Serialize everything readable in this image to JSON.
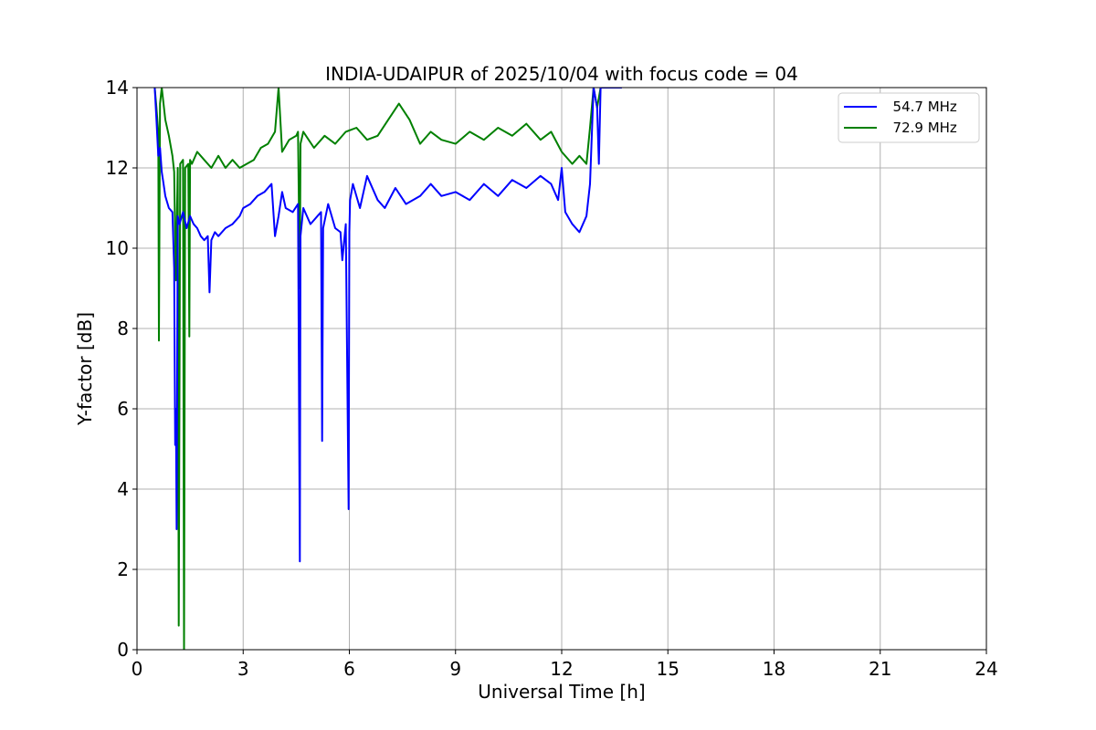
{
  "chart_data": {
    "type": "line",
    "title": "INDIA-UDAIPUR of 2025/10/04 with focus code = 04",
    "xlabel": "Universal Time [h]",
    "ylabel": "Y-factor [dB]",
    "xlim": [
      0,
      24
    ],
    "ylim": [
      0,
      14
    ],
    "xticks": [
      0,
      3,
      6,
      9,
      12,
      15,
      18,
      21,
      24
    ],
    "yticks": [
      0,
      2,
      4,
      6,
      8,
      10,
      12,
      14
    ],
    "xtick_labels": [
      "0",
      "3",
      "6",
      "9",
      "12",
      "15",
      "18",
      "21",
      "24"
    ],
    "ytick_labels": [
      "0",
      "2",
      "4",
      "6",
      "8",
      "10",
      "12",
      "14"
    ],
    "grid": true,
    "legend_position": "top-right",
    "series": [
      {
        "name": "  54.7 MHz",
        "color": "#0000ff",
        "x": [
          0.5,
          0.55,
          0.6,
          0.65,
          0.7,
          0.75,
          0.8,
          0.9,
          1.0,
          1.05,
          1.08,
          1.1,
          1.12,
          1.15,
          1.2,
          1.3,
          1.4,
          1.5,
          1.6,
          1.7,
          1.8,
          1.9,
          2.0,
          2.05,
          2.1,
          2.2,
          2.3,
          2.5,
          2.7,
          2.9,
          3.0,
          3.2,
          3.4,
          3.6,
          3.8,
          3.9,
          4.0,
          4.1,
          4.2,
          4.4,
          4.55,
          4.6,
          4.62,
          4.7,
          4.9,
          5.1,
          5.2,
          5.23,
          5.26,
          5.4,
          5.6,
          5.75,
          5.8,
          5.9,
          5.98,
          6.0,
          6.02,
          6.1,
          6.3,
          6.5,
          6.8,
          7.0,
          7.3,
          7.6,
          8.0,
          8.3,
          8.6,
          9.0,
          9.4,
          9.8,
          10.2,
          10.6,
          11.0,
          11.4,
          11.7,
          11.9,
          12.0,
          12.1,
          12.3,
          12.5,
          12.7,
          12.8,
          12.9,
          13.0,
          13.05,
          13.1,
          13.2,
          13.5,
          13.7
        ],
        "y": [
          14.0,
          13.2,
          12.3,
          12.5,
          11.9,
          11.6,
          11.3,
          11.0,
          10.9,
          9.5,
          5.1,
          6.0,
          3.0,
          10.8,
          10.6,
          10.9,
          10.5,
          10.8,
          10.6,
          10.5,
          10.3,
          10.2,
          10.3,
          8.9,
          10.2,
          10.4,
          10.3,
          10.5,
          10.6,
          10.8,
          11.0,
          11.1,
          11.3,
          11.4,
          11.6,
          10.3,
          10.8,
          11.4,
          11.0,
          10.9,
          11.1,
          2.2,
          10.3,
          11.0,
          10.6,
          10.8,
          10.9,
          5.2,
          10.5,
          11.1,
          10.5,
          10.4,
          9.7,
          10.6,
          3.5,
          10.4,
          11.2,
          11.6,
          11.0,
          11.8,
          11.2,
          11.0,
          11.5,
          11.1,
          11.3,
          11.6,
          11.3,
          11.4,
          11.2,
          11.6,
          11.3,
          11.7,
          11.5,
          11.8,
          11.6,
          11.2,
          12.0,
          10.9,
          10.6,
          10.4,
          10.8,
          11.6,
          14.0,
          13.5,
          12.1,
          14.0,
          14.0,
          14.0,
          14.0
        ]
      },
      {
        "name": "  72.9 MHz",
        "color": "#008000",
        "x": [
          0.5,
          0.55,
          0.6,
          0.62,
          0.65,
          0.7,
          0.8,
          0.9,
          1.0,
          1.05,
          1.1,
          1.15,
          1.18,
          1.22,
          1.3,
          1.33,
          1.36,
          1.45,
          1.48,
          1.5,
          1.55,
          1.7,
          1.9,
          2.1,
          2.3,
          2.5,
          2.7,
          2.9,
          3.1,
          3.3,
          3.5,
          3.7,
          3.9,
          4.0,
          4.1,
          4.3,
          4.5,
          4.55,
          4.6,
          4.62,
          4.7,
          5.0,
          5.3,
          5.6,
          5.9,
          6.2,
          6.5,
          6.8,
          7.1,
          7.4,
          7.7,
          8.0,
          8.3,
          8.6,
          9.0,
          9.4,
          9.8,
          10.2,
          10.6,
          11.0,
          11.4,
          11.7,
          12.0,
          12.3,
          12.5,
          12.7,
          12.8,
          12.9,
          13.0,
          13.1,
          13.2
        ],
        "y": [
          14.0,
          13.5,
          12.9,
          7.7,
          13.6,
          14.0,
          13.2,
          12.8,
          12.3,
          11.9,
          9.2,
          12.0,
          0.6,
          12.1,
          12.2,
          0.0,
          12.0,
          12.1,
          7.8,
          12.2,
          12.1,
          12.4,
          12.2,
          12.0,
          12.3,
          12.0,
          12.2,
          12.0,
          12.1,
          12.2,
          12.5,
          12.6,
          12.9,
          14.0,
          12.4,
          12.7,
          12.8,
          12.9,
          9.0,
          12.6,
          12.9,
          12.5,
          12.8,
          12.6,
          12.9,
          13.0,
          12.7,
          12.8,
          13.2,
          13.6,
          13.2,
          12.6,
          12.9,
          12.7,
          12.6,
          12.9,
          12.7,
          13.0,
          12.8,
          13.1,
          12.7,
          12.9,
          12.4,
          12.1,
          12.3,
          12.1,
          13.0,
          14.0,
          13.5,
          14.0,
          14.0
        ]
      }
    ]
  }
}
